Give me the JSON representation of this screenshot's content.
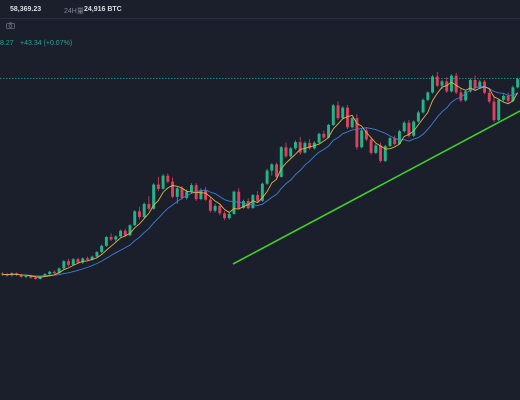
{
  "header": {
    "high_value": "58,369.23",
    "vol_label": "24H量",
    "vol_value": "24,916 BTC"
  },
  "price_change": {
    "last_fragment": "8.27",
    "change": "+43.34 (+0.07%)"
  },
  "colors": {
    "background": "#1b1e2b",
    "up": "#22b58a",
    "down": "#e0405e",
    "ma_fast": "#e3b341",
    "ma_slow": "#3d7fd6",
    "trendline": "#3ecf28",
    "price_line": "#26a69a"
  },
  "chart_data": {
    "type": "candlestick",
    "title": "",
    "xlabel": "",
    "ylabel": "",
    "ylim": [
      0,
      100
    ],
    "overlays": [
      "moving-average-fast",
      "moving-average-slow",
      "trendline",
      "last-price-line"
    ],
    "current_price_level": 93.5,
    "candles": [
      [
        25.1,
        25.6,
        24.2,
        24.8
      ],
      [
        24.8,
        25.3,
        24.0,
        24.5
      ],
      [
        24.5,
        25.5,
        24.0,
        25.2
      ],
      [
        25.2,
        25.5,
        24.2,
        24.6
      ],
      [
        24.6,
        25.0,
        23.6,
        23.9
      ],
      [
        23.9,
        24.5,
        23.5,
        24.2
      ],
      [
        24.2,
        24.6,
        23.3,
        23.6
      ],
      [
        23.6,
        24.0,
        22.9,
        23.2
      ],
      [
        23.2,
        24.4,
        23.0,
        24.1
      ],
      [
        24.1,
        25.2,
        23.8,
        24.9
      ],
      [
        24.9,
        26.0,
        24.5,
        25.7
      ],
      [
        25.7,
        26.2,
        24.9,
        25.2
      ],
      [
        25.2,
        27.2,
        25.0,
        26.9
      ],
      [
        26.9,
        29.8,
        26.5,
        29.4
      ],
      [
        29.4,
        30.2,
        27.5,
        28.1
      ],
      [
        28.1,
        30.5,
        27.9,
        30.1
      ],
      [
        30.1,
        30.6,
        28.4,
        28.9
      ],
      [
        28.9,
        30.8,
        28.5,
        30.4
      ],
      [
        30.4,
        31.0,
        29.5,
        29.9
      ],
      [
        29.9,
        31.4,
        29.6,
        31.0
      ],
      [
        31.0,
        33.0,
        30.6,
        32.6
      ],
      [
        32.6,
        35.2,
        32.2,
        34.8
      ],
      [
        34.8,
        38.3,
        34.5,
        37.9
      ],
      [
        37.9,
        39.2,
        36.5,
        37.0
      ],
      [
        37.0,
        38.5,
        36.0,
        38.1
      ],
      [
        38.1,
        40.5,
        37.8,
        40.1
      ],
      [
        40.1,
        40.8,
        37.8,
        38.5
      ],
      [
        38.5,
        42.4,
        38.2,
        42.0
      ],
      [
        42.0,
        47.3,
        41.8,
        46.9
      ],
      [
        46.9,
        48.5,
        44.0,
        44.9
      ],
      [
        44.9,
        50.0,
        44.6,
        49.5
      ],
      [
        49.5,
        52.2,
        47.2,
        47.8
      ],
      [
        47.8,
        56.8,
        47.5,
        56.3
      ],
      [
        56.3,
        59.0,
        54.0,
        54.8
      ],
      [
        54.8,
        60.0,
        54.5,
        59.4
      ],
      [
        59.4,
        60.2,
        56.8,
        57.3
      ],
      [
        57.3,
        58.8,
        51.5,
        52.0
      ],
      [
        52.0,
        55.5,
        49.5,
        55.0
      ],
      [
        55.0,
        55.8,
        51.0,
        51.6
      ],
      [
        51.6,
        54.5,
        51.0,
        53.8
      ],
      [
        53.8,
        56.8,
        53.0,
        56.1
      ],
      [
        56.1,
        56.8,
        50.5,
        51.2
      ],
      [
        51.2,
        55.0,
        50.8,
        54.4
      ],
      [
        54.4,
        55.5,
        50.6,
        51.0
      ],
      [
        51.0,
        52.0,
        46.5,
        47.1
      ],
      [
        47.1,
        49.5,
        46.5,
        48.8
      ],
      [
        48.8,
        49.6,
        45.5,
        46.2
      ],
      [
        46.2,
        47.0,
        43.8,
        44.5
      ],
      [
        44.5,
        46.5,
        44.0,
        46.0
      ],
      [
        46.0,
        54.2,
        45.7,
        53.8
      ],
      [
        53.8,
        55.0,
        47.5,
        48.1
      ],
      [
        48.1,
        51.0,
        47.8,
        50.5
      ],
      [
        50.5,
        51.5,
        47.6,
        48.0
      ],
      [
        48.0,
        53.0,
        47.8,
        52.6
      ],
      [
        52.6,
        54.0,
        50.0,
        50.6
      ],
      [
        50.6,
        57.0,
        50.3,
        56.6
      ],
      [
        56.6,
        61.8,
        56.2,
        61.2
      ],
      [
        61.2,
        63.8,
        59.5,
        63.4
      ],
      [
        63.4,
        64.0,
        58.3,
        59.0
      ],
      [
        59.0,
        69.8,
        58.8,
        69.4
      ],
      [
        69.4,
        71.0,
        65.6,
        66.2
      ],
      [
        66.2,
        69.5,
        65.8,
        69.0
      ],
      [
        69.0,
        71.8,
        68.5,
        71.2
      ],
      [
        71.2,
        73.0,
        66.8,
        67.5
      ],
      [
        67.5,
        71.5,
        67.2,
        70.9
      ],
      [
        70.9,
        72.2,
        68.5,
        69.0
      ],
      [
        69.0,
        71.5,
        68.6,
        71.0
      ],
      [
        71.0,
        74.5,
        70.7,
        74.1
      ],
      [
        74.1,
        75.2,
        72.3,
        72.8
      ],
      [
        72.8,
        77.6,
        72.5,
        77.2
      ],
      [
        77.2,
        84.6,
        76.8,
        84.1
      ],
      [
        84.1,
        85.5,
        79.0,
        79.6
      ],
      [
        79.6,
        83.8,
        79.2,
        83.3
      ],
      [
        83.3,
        84.2,
        75.8,
        76.4
      ],
      [
        76.4,
        80.0,
        76.0,
        79.6
      ],
      [
        79.6,
        81.0,
        68.5,
        69.4
      ],
      [
        69.4,
        75.8,
        69.0,
        75.3
      ],
      [
        75.3,
        76.5,
        71.5,
        72.1
      ],
      [
        72.1,
        73.0,
        66.8,
        67.4
      ],
      [
        67.4,
        70.5,
        67.0,
        70.0
      ],
      [
        70.0,
        71.0,
        64.0,
        64.6
      ],
      [
        64.6,
        70.2,
        64.2,
        69.8
      ],
      [
        69.8,
        73.0,
        69.5,
        72.6
      ],
      [
        72.6,
        73.5,
        70.0,
        70.5
      ],
      [
        70.5,
        75.5,
        70.2,
        75.0
      ],
      [
        75.0,
        78.6,
        74.5,
        78.0
      ],
      [
        78.0,
        79.0,
        72.8,
        73.4
      ],
      [
        73.4,
        78.8,
        73.0,
        78.4
      ],
      [
        78.4,
        82.2,
        78.0,
        81.6
      ],
      [
        81.6,
        86.5,
        81.2,
        86.0
      ],
      [
        86.0,
        89.0,
        85.5,
        88.6
      ],
      [
        88.6,
        94.8,
        88.2,
        94.2
      ],
      [
        94.2,
        95.8,
        90.5,
        91.0
      ],
      [
        91.0,
        93.0,
        89.8,
        92.5
      ],
      [
        92.5,
        94.0,
        88.5,
        89.0
      ],
      [
        89.0,
        95.0,
        88.6,
        94.5
      ],
      [
        94.5,
        95.5,
        88.0,
        88.6
      ],
      [
        88.6,
        90.0,
        85.2,
        85.8
      ],
      [
        85.8,
        89.5,
        85.4,
        89.0
      ],
      [
        89.0,
        93.5,
        88.6,
        93.0
      ],
      [
        93.0,
        94.5,
        89.5,
        90.2
      ],
      [
        90.2,
        93.0,
        89.8,
        92.4
      ],
      [
        92.4,
        93.0,
        88.0,
        88.5
      ],
      [
        88.5,
        90.0,
        84.8,
        85.4
      ],
      [
        85.4,
        87.5,
        78.2,
        78.9
      ],
      [
        78.9,
        86.5,
        78.5,
        86.0
      ],
      [
        86.0,
        88.0,
        85.5,
        87.4
      ],
      [
        87.4,
        88.6,
        85.0,
        85.6
      ],
      [
        85.6,
        91.0,
        85.2,
        90.4
      ],
      [
        90.4,
        93.8,
        90.0,
        93.3
      ]
    ]
  }
}
